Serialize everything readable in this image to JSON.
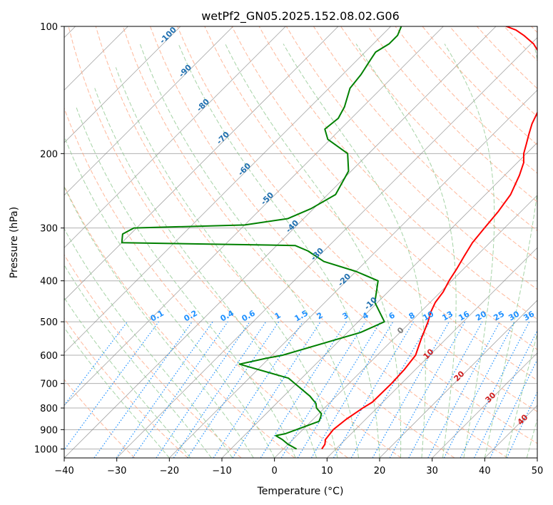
{
  "chart_data": {
    "type": "line",
    "title": "wetPf2_GN05.2025.152.08.02.G06",
    "xlabel": "Temperature (°C)",
    "ylabel": "Pressure (hPa)",
    "xlim": [
      -40,
      50
    ],
    "ylim": [
      1050,
      100
    ],
    "y_scale": "log",
    "grid": true,
    "x_ticks": [
      -40,
      -30,
      -20,
      -10,
      0,
      10,
      20,
      30,
      40,
      50
    ],
    "y_ticks": [
      100,
      200,
      300,
      400,
      500,
      600,
      700,
      800,
      900,
      1000
    ],
    "skew": true,
    "series": [
      {
        "color": "#ff0000",
        "x": [
          7.3,
          7.0,
          6.2,
          6.0,
          5.8,
          6.3,
          6.8,
          7.3,
          8.0,
          8.1,
          7.9,
          7.3,
          5.3,
          3.3,
          2.0,
          1.0,
          0.5,
          -0.5,
          -1.3,
          -2.3,
          -3.3,
          -3.8,
          -4.3,
          -5.2,
          -7.2,
          -8.8,
          -10.5,
          -11.8,
          -13.2,
          -14.6,
          -15.7,
          -16.8,
          -18.3,
          -20.4,
          -22.0,
          -24.5,
          -27.0,
          -29.5,
          -33.0,
          -35.5,
          -38.0,
          -40.5,
          -42.3
        ],
        "y": [
          1000,
          975,
          950,
          925,
          900,
          850,
          825,
          800,
          775,
          700,
          650,
          600,
          550,
          500,
          475,
          450,
          425,
          400,
          375,
          350,
          325,
          300,
          275,
          250,
          225,
          210,
          200,
          190,
          180,
          170,
          160,
          150,
          140,
          130,
          125,
          120,
          115,
          110,
          105,
          102,
          100,
          98,
          96
        ]
      },
      {
        "color": "#008000",
        "x": [
          2.5,
          0.0,
          -2.0,
          -4.0,
          -2.5,
          1.5,
          1.0,
          0.5,
          -1.5,
          -2.5,
          -5.0,
          -12.5,
          -24.5,
          -20.5,
          -18.0,
          -7.5,
          -5.0,
          -10.5,
          -14.0,
          -20.0,
          -28.0,
          -33.0,
          -36.5,
          -70.0,
          -71.5,
          -70.5,
          -50.0,
          -43.0,
          -40.5,
          -38.5,
          -40.5,
          -44.0,
          -50.5,
          -53.0,
          -52.5,
          -53.5,
          -56.0,
          -56.5,
          -57.5,
          -58.0,
          -57.0,
          -57.0,
          -58.0
        ],
        "y": [
          1000,
          975,
          950,
          930,
          920,
          860,
          840,
          825,
          800,
          780,
          750,
          680,
          630,
          610,
          600,
          530,
          500,
          450,
          400,
          380,
          360,
          340,
          330,
          325,
          310,
          300,
          295,
          285,
          270,
          250,
          220,
          200,
          185,
          175,
          165,
          155,
          140,
          130,
          120,
          115,
          110,
          105,
          100
        ]
      }
    ],
    "isotherm_labels": [],
    "dry_adiabat_labels": [
      "-100",
      "-90",
      "-80",
      "-70",
      "-60",
      "-50",
      "-40",
      "-30",
      "-20",
      "-10"
    ],
    "mixing_ratio_labels": [
      "0.1",
      "0.2",
      "0.4",
      "0.6",
      "1",
      "1.5",
      "2",
      "3",
      "4",
      "6",
      "8",
      "10",
      "13",
      "16",
      "20",
      "25",
      "30",
      "36"
    ],
    "moist_adiabat_labels": [
      "0",
      "10",
      "20",
      "30",
      "40"
    ],
    "colors": {
      "temperature": "#ff0000",
      "dewpoint": "#008000",
      "isotherm": "#808080",
      "dry_adiabat": "#ffa07a",
      "moist_adiabat": "#90c890",
      "mixing_ratio": "#1e90ff",
      "dry_adiabat_label": "#2070b0",
      "moist_adiabat_label": "#d02020",
      "zero_label": "#808080"
    }
  }
}
